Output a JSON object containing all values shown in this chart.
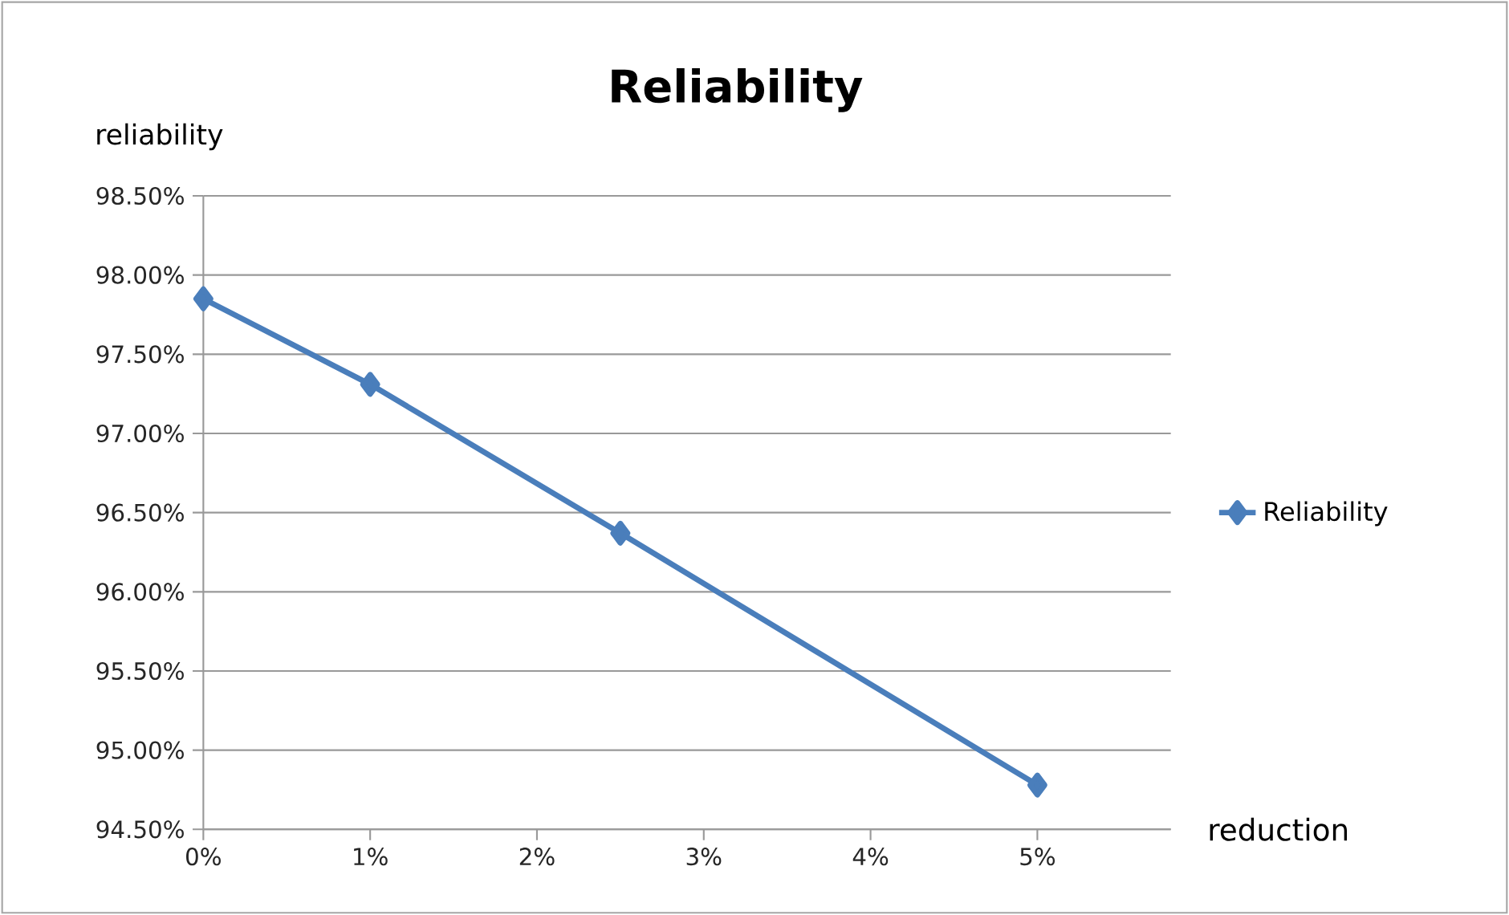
{
  "chart_data": {
    "type": "line",
    "title": "Reliability",
    "xlabel": "reduction",
    "ylabel": "reliability",
    "x": [
      0,
      1,
      2.5,
      5
    ],
    "series": [
      {
        "name": "Reliability",
        "color": "#4a7ebb",
        "values": [
          97.85,
          97.31,
          96.37,
          94.78
        ]
      }
    ],
    "xlim": [
      0,
      5.8
    ],
    "xticks": [
      {
        "value": 0,
        "label": "0%"
      },
      {
        "value": 1,
        "label": "1%"
      },
      {
        "value": 2,
        "label": "2%"
      },
      {
        "value": 3,
        "label": "3%"
      },
      {
        "value": 4,
        "label": "4%"
      },
      {
        "value": 5,
        "label": "5%"
      }
    ],
    "ylim": [
      94.5,
      98.5
    ],
    "yticks": [
      {
        "value": 94.5,
        "label": "94.50%"
      },
      {
        "value": 95,
        "label": "95.00%"
      },
      {
        "value": 95.5,
        "label": "95.50%"
      },
      {
        "value": 96,
        "label": "96.00%"
      },
      {
        "value": 96.5,
        "label": "96.50%"
      },
      {
        "value": 97,
        "label": "97.00%"
      },
      {
        "value": 97.5,
        "label": "97.50%"
      },
      {
        "value": 98,
        "label": "98.00%"
      },
      {
        "value": 98.5,
        "label": "98.50%"
      }
    ],
    "grid": "y",
    "legend": "right",
    "marker": "diamond",
    "line_style": "solid"
  }
}
